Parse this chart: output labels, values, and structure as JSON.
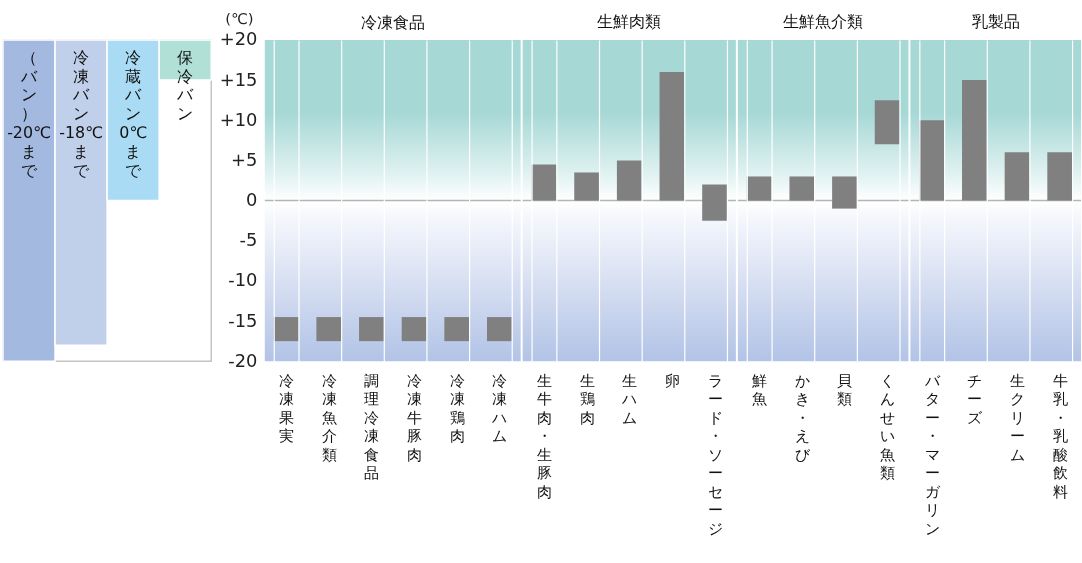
{
  "chart_data": [
    {
      "type": "bar",
      "categories": [
        "（バン）-20℃まで",
        "冷凍バン-18℃まで",
        "冷蔵バン0℃まで",
        "保冷バン"
      ],
      "base": [
        -20,
        -18,
        0,
        15
      ],
      "values": [
        40,
        38,
        20,
        5
      ],
      "colors": [
        "#a3b9e0",
        "#c0cfea",
        "#a9dcf4",
        "#b0e0d6"
      ],
      "ylim": [
        -20,
        20
      ],
      "tick_labels": false
    },
    {
      "type": "bar",
      "title": "冷凍食品",
      "ylabel": "(℃)",
      "categories": [
        "冷凍果実",
        "冷凍魚介類",
        "調理冷凍食品",
        "冷凍牛豚肉",
        "冷凍鶏肉",
        "冷凍ハム"
      ],
      "base": [
        -17.5,
        -17.5,
        -17.5,
        -17.5,
        -17.5,
        -17.5
      ],
      "values": [
        3,
        3,
        3,
        3,
        3,
        3
      ],
      "color": "#808080",
      "ylim": [
        -20,
        20
      ],
      "yticks": [
        {
          "value": 20,
          "label": "+20"
        },
        {
          "value": 15,
          "label": "+15"
        },
        {
          "value": 10,
          "label": "+10"
        },
        {
          "value": 5,
          "label": "+5"
        },
        0,
        -5,
        -10,
        -15,
        -20
      ],
      "grid": "x",
      "ref_lines": [
        {
          "axis": "y",
          "value": 0,
          "color": "#b4b4b4"
        }
      ],
      "bands": [
        {
          "axis": "y",
          "from": 0,
          "to": 20,
          "color": "#a6d8d6"
        },
        {
          "axis": "y",
          "from": -20,
          "to": 0,
          "color": "#b2c3e6"
        }
      ]
    },
    {
      "type": "bar",
      "title": "生鮮肉類",
      "categories": [
        "生牛肉・生豚肉",
        "生鶏肉",
        "生ハム",
        "卵",
        "ラード・ソーセージ"
      ],
      "base": [
        0,
        0,
        0,
        0,
        -2.5
      ],
      "values": [
        4.5,
        3.5,
        5,
        16,
        4.5
      ],
      "color": "#808080",
      "ylim": [
        -20,
        20
      ],
      "grid": "x",
      "ref_lines": [
        {
          "axis": "y",
          "value": 0,
          "color": "#b4b4b4"
        }
      ],
      "bands": [
        {
          "axis": "y",
          "from": 0,
          "to": 20,
          "color": "#a6d8d6"
        },
        {
          "axis": "y",
          "from": -20,
          "to": 0,
          "color": "#b2c3e6"
        }
      ],
      "tick_labels": "x"
    },
    {
      "type": "bar",
      "title": "生鮮魚介類",
      "categories": [
        "鮮魚",
        "かき・えび",
        "貝類",
        "くんせい魚類"
      ],
      "base": [
        0,
        0,
        -1,
        7
      ],
      "values": [
        3,
        3,
        4,
        5.5
      ],
      "color": "#808080",
      "ylim": [
        -20,
        20
      ],
      "grid": "x",
      "ref_lines": [
        {
          "axis": "y",
          "value": 0,
          "color": "#b4b4b4"
        }
      ],
      "bands": [
        {
          "axis": "y",
          "from": 0,
          "to": 20,
          "color": "#a6d8d6"
        },
        {
          "axis": "y",
          "from": -20,
          "to": 0,
          "color": "#b2c3e6"
        }
      ],
      "tick_labels": "x"
    },
    {
      "type": "bar",
      "title": "乳製品",
      "categories": [
        "バター・マーガリン",
        "チーズ",
        "生クリーム",
        "牛乳・乳酸飲料"
      ],
      "base": [
        0,
        0,
        0,
        0
      ],
      "values": [
        10,
        15,
        6,
        6
      ],
      "color": "#808080",
      "ylim": [
        -20,
        20
      ],
      "grid": "x",
      "ref_lines": [
        {
          "axis": "y",
          "value": 0,
          "color": "#b4b4b4"
        }
      ],
      "bands": [
        {
          "axis": "y",
          "from": 0,
          "to": 20,
          "color": "#a6d8d6"
        },
        {
          "axis": "y",
          "from": -20,
          "to": 0,
          "color": "#b2c3e6"
        }
      ],
      "tick_labels": "x"
    }
  ]
}
